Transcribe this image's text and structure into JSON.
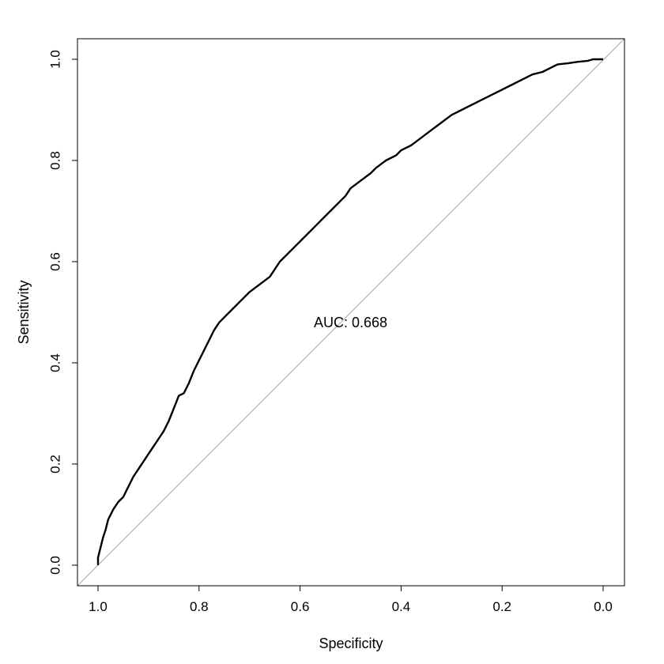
{
  "chart_data": {
    "type": "line",
    "title": "",
    "xlabel": "Specificity",
    "ylabel": "Sensitivity",
    "xlim": [
      1.0,
      0.0
    ],
    "ylim": [
      0.0,
      1.0
    ],
    "x_reversed": true,
    "xticks": [
      "1.0",
      "0.8",
      "0.6",
      "0.4",
      "0.2",
      "0.0"
    ],
    "yticks": [
      "0.0",
      "0.2",
      "0.4",
      "0.6",
      "0.8",
      "1.0"
    ],
    "grid": false,
    "annotation": {
      "text": "AUC: 0.668",
      "x": 0.5,
      "y": 0.48
    },
    "reference_line": {
      "from": [
        1.0,
        0.0
      ],
      "to": [
        0.0,
        1.0
      ],
      "color": "#aaaaaa"
    },
    "series": [
      {
        "color": "#000000",
        "x": [
          1.0,
          1.0,
          0.995,
          0.99,
          0.985,
          0.98,
          0.97,
          0.96,
          0.95,
          0.94,
          0.93,
          0.92,
          0.91,
          0.9,
          0.89,
          0.88,
          0.87,
          0.86,
          0.85,
          0.84,
          0.83,
          0.82,
          0.81,
          0.8,
          0.79,
          0.78,
          0.77,
          0.76,
          0.75,
          0.74,
          0.73,
          0.72,
          0.7,
          0.68,
          0.66,
          0.64,
          0.63,
          0.61,
          0.59,
          0.57,
          0.55,
          0.53,
          0.51,
          0.5,
          0.48,
          0.46,
          0.45,
          0.43,
          0.41,
          0.4,
          0.38,
          0.36,
          0.34,
          0.32,
          0.3,
          0.28,
          0.26,
          0.24,
          0.22,
          0.2,
          0.18,
          0.16,
          0.14,
          0.12,
          0.1,
          0.09,
          0.07,
          0.05,
          0.03,
          0.02,
          0.0
        ],
        "y": [
          0.0,
          0.015,
          0.035,
          0.055,
          0.07,
          0.09,
          0.11,
          0.125,
          0.135,
          0.155,
          0.175,
          0.19,
          0.205,
          0.22,
          0.235,
          0.25,
          0.265,
          0.285,
          0.31,
          0.335,
          0.34,
          0.36,
          0.385,
          0.405,
          0.425,
          0.445,
          0.465,
          0.48,
          0.49,
          0.5,
          0.51,
          0.52,
          0.54,
          0.555,
          0.57,
          0.6,
          0.61,
          0.63,
          0.65,
          0.67,
          0.69,
          0.71,
          0.73,
          0.745,
          0.76,
          0.775,
          0.785,
          0.8,
          0.81,
          0.82,
          0.83,
          0.845,
          0.86,
          0.875,
          0.89,
          0.9,
          0.91,
          0.92,
          0.93,
          0.94,
          0.95,
          0.96,
          0.97,
          0.975,
          0.985,
          0.99,
          0.992,
          0.995,
          0.997,
          1.0,
          1.0
        ]
      }
    ]
  }
}
